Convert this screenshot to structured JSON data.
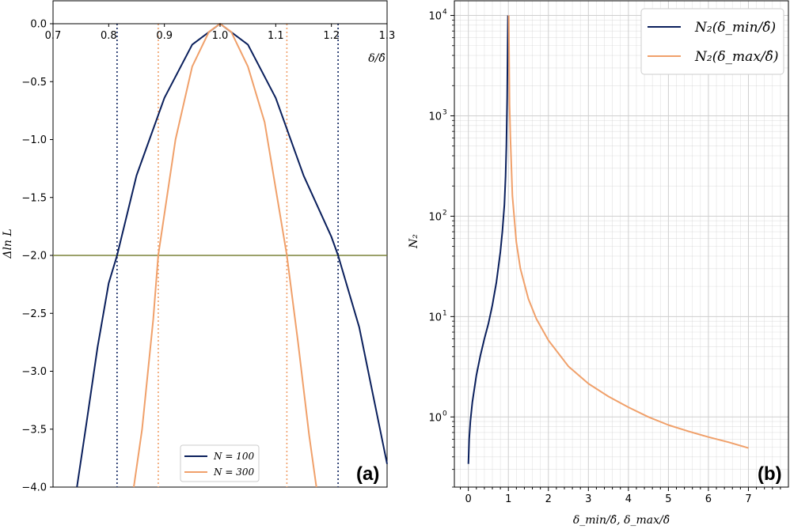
{
  "colors": {
    "navy": "#0a1f5c",
    "orange": "#f0a06a",
    "olive": "#7a8238",
    "grid": "#cfcfcf"
  },
  "chart_data": [
    {
      "type": "line",
      "panel_label": "(a)",
      "xlabel": "δ/δ̂",
      "ylabel": "Δln L",
      "xlim": [
        0.7,
        1.3
      ],
      "ylim": [
        -4.0,
        0.0
      ],
      "xticks": [
        "0.7",
        "0.8",
        "0.9",
        "1.0",
        "1.1",
        "1.2",
        "1.3"
      ],
      "yticks": [
        "0.0",
        "−0.5",
        "−1.0",
        "−1.5",
        "−2.0",
        "−2.5",
        "−3.0",
        "−3.5",
        "−4.0"
      ],
      "grid": false,
      "legend_placement": "lower center",
      "series": [
        {
          "name": "N = 100",
          "color": "#0a1f5c",
          "x": [
            0.743,
            0.76,
            0.78,
            0.8,
            0.815,
            0.85,
            0.9,
            0.95,
            1.0,
            1.05,
            1.1,
            1.15,
            1.2,
            1.212,
            1.25,
            1.3
          ],
          "y": [
            -4.0,
            -3.45,
            -2.79,
            -2.24,
            -2.0,
            -1.31,
            -0.64,
            -0.18,
            0.0,
            -0.18,
            -0.64,
            -1.31,
            -1.84,
            -2.0,
            -2.62,
            -3.8
          ]
        },
        {
          "name": "N = 300",
          "color": "#f0a06a",
          "x": [
            0.845,
            0.86,
            0.88,
            0.889,
            0.92,
            0.95,
            0.98,
            1.0,
            1.02,
            1.05,
            1.08,
            1.12,
            1.14,
            1.16,
            1.173
          ],
          "y": [
            -4.0,
            -3.5,
            -2.55,
            -2.0,
            -1.0,
            -0.37,
            -0.07,
            0.0,
            -0.07,
            -0.37,
            -0.85,
            -2.0,
            -2.75,
            -3.55,
            -4.0
          ]
        }
      ],
      "reference_lines": [
        {
          "type": "horizontal",
          "y": -2.0,
          "color": "#7a8238"
        },
        {
          "type": "vertical",
          "x": 0.815,
          "color": "#0a1f5c",
          "style": "dotted"
        },
        {
          "type": "vertical",
          "x": 1.212,
          "color": "#0a1f5c",
          "style": "dotted"
        },
        {
          "type": "vertical",
          "x": 0.889,
          "color": "#f0a06a",
          "style": "dotted"
        },
        {
          "type": "vertical",
          "x": 1.12,
          "color": "#f0a06a",
          "style": "dotted"
        }
      ]
    },
    {
      "type": "line",
      "panel_label": "(b)",
      "xlabel": "δ_min/δ̂, δ_max/δ̂",
      "ylabel": "N₂",
      "yscale": "log",
      "xlim": [
        -0.35,
        8.0
      ],
      "ylim": [
        0.2,
        14000
      ],
      "xticks": [
        "0",
        "1",
        "2",
        "3",
        "4",
        "5",
        "6",
        "7"
      ],
      "yticks": [
        {
          "base": "10",
          "exp": "0",
          "value": 1
        },
        {
          "base": "10",
          "exp": "1",
          "value": 10
        },
        {
          "base": "10",
          "exp": "2",
          "value": 100
        },
        {
          "base": "10",
          "exp": "3",
          "value": 1000
        },
        {
          "base": "10",
          "exp": "4",
          "value": 10000
        }
      ],
      "grid": true,
      "legend_placement": "upper right",
      "series": [
        {
          "name": "N₂(δ_min/δ̂)",
          "color": "#0a1f5c",
          "x": [
            0.0,
            0.02,
            0.05,
            0.1,
            0.2,
            0.3,
            0.4,
            0.5,
            0.6,
            0.7,
            0.8,
            0.85,
            0.9,
            0.93,
            0.95,
            0.97,
            0.99
          ],
          "y": [
            0.34,
            0.6,
            0.9,
            1.4,
            2.6,
            4.1,
            6.0,
            8.5,
            13,
            22,
            44,
            70,
            130,
            250,
            500,
            1500,
            10000
          ]
        },
        {
          "name": "N₂(δ_max/δ̂)",
          "color": "#f0a06a",
          "x": [
            1.01,
            1.03,
            1.05,
            1.1,
            1.2,
            1.3,
            1.5,
            1.7,
            2.0,
            2.5,
            3.0,
            3.5,
            4.0,
            4.5,
            5.0,
            5.5,
            6.0,
            6.5,
            7.0
          ],
          "y": [
            10000,
            1300,
            600,
            160,
            55,
            30,
            15,
            9.5,
            5.8,
            3.2,
            2.15,
            1.6,
            1.25,
            1.0,
            0.83,
            0.72,
            0.63,
            0.56,
            0.49
          ]
        }
      ]
    }
  ]
}
